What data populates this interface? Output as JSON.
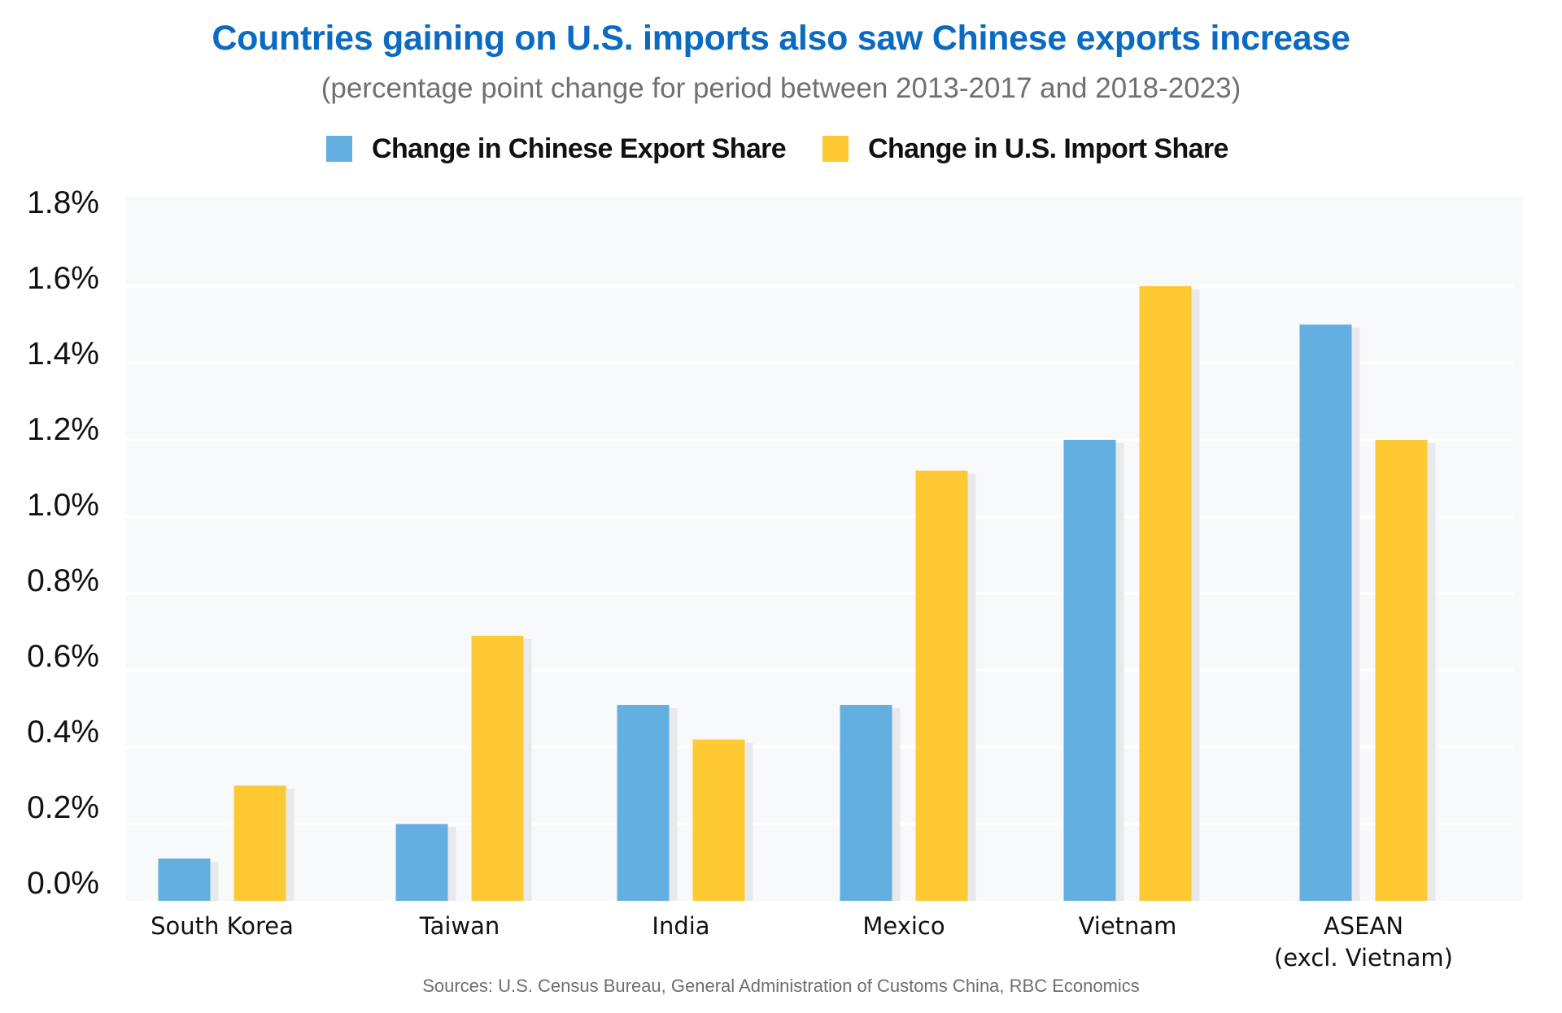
{
  "colors": {
    "title": "#0b6ac1",
    "subtitle": "#707070",
    "chinese_export": "#62afe0",
    "us_import": "#ffc933",
    "plot_background": "#f8f9fb",
    "gridline": "#ffffff",
    "bar_shadow": "#e8e9ec"
  },
  "chart_data": {
    "type": "bar",
    "title": "Countries gaining on U.S. imports also saw Chinese exports increase",
    "subtitle": "(percentage point change for period between 2013-2017 and 2018-2023)",
    "xlabel": "",
    "ylabel": "",
    "categories": [
      "South Korea",
      "Taiwan",
      "India",
      "Mexico",
      "Vietnam",
      "ASEAN\n(excl. Vietnam)"
    ],
    "category_lines": [
      [
        "South Korea"
      ],
      [
        "Taiwan"
      ],
      [
        "India"
      ],
      [
        "Mexico"
      ],
      [
        "Vietnam"
      ],
      [
        "ASEAN",
        "(excl. Vietnam)"
      ]
    ],
    "series": [
      {
        "name": "Change in Chinese Export Share",
        "color": "#62afe0",
        "values": [
          0.11,
          0.2,
          0.51,
          0.51,
          1.2,
          1.5
        ]
      },
      {
        "name": "Change in U.S. Import Share",
        "color": "#ffc933",
        "values": [
          0.3,
          0.69,
          0.42,
          1.12,
          1.6,
          1.2
        ]
      }
    ],
    "ylim": [
      0,
      1.8
    ],
    "yticks": [
      0.0,
      0.2,
      0.4,
      0.6,
      0.8,
      1.0,
      1.2,
      1.4,
      1.6,
      1.8
    ],
    "ytick_labels": [
      "0.0%",
      "0.2%",
      "0.4%",
      "0.6%",
      "0.8%",
      "1.0%",
      "1.2%",
      "1.4%",
      "1.6%",
      "1.8%"
    ],
    "grid": true,
    "legend_position": "top-center",
    "source": "Sources: U.S. Census Bureau, General Administration of Customs China, RBC Economics"
  }
}
